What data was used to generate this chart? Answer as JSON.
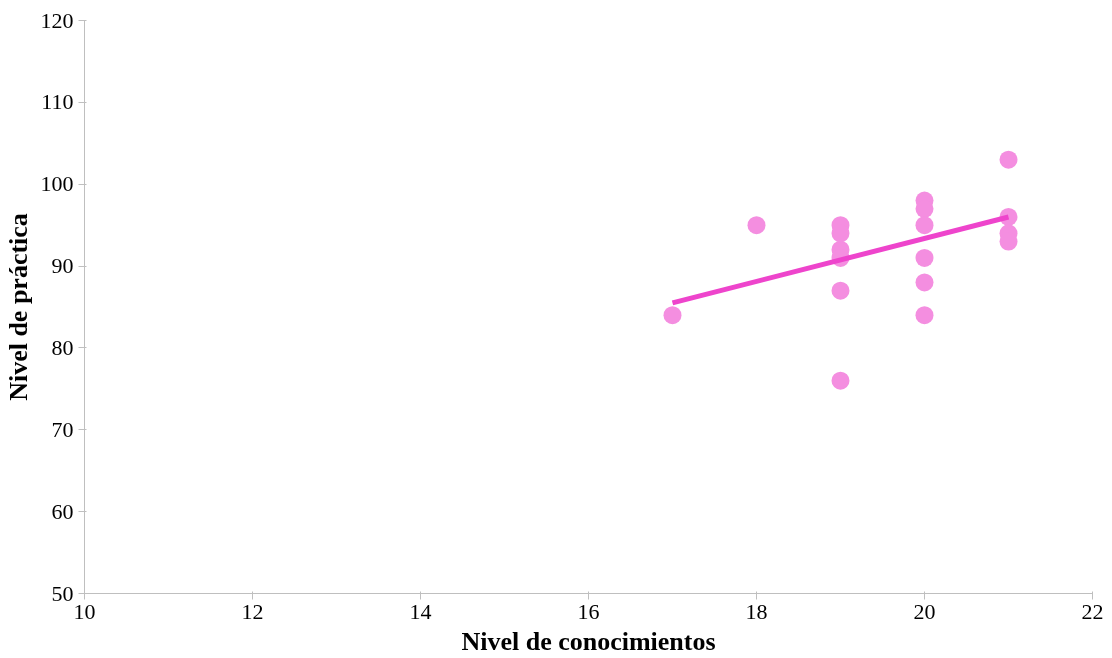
{
  "chart_data": {
    "type": "scatter",
    "xlabel": "Nivel de conocimientos",
    "ylabel": "Nivel de práctica",
    "xlim": [
      10,
      22
    ],
    "xticks": [
      10,
      12,
      14,
      16,
      18,
      20,
      22
    ],
    "ylim": [
      50,
      120
    ],
    "yticks": [
      50,
      60,
      70,
      80,
      90,
      100,
      110,
      120
    ],
    "grid": false,
    "series": [
      {
        "color": "#f48ee0",
        "marker": "circle",
        "x": [
          17,
          18,
          19,
          19,
          19,
          19,
          19,
          19,
          20,
          20,
          20,
          20,
          20,
          20,
          21,
          21,
          21,
          21
        ],
        "values": [
          84,
          95,
          95,
          94,
          92,
          91,
          87,
          76,
          98,
          97,
          95,
          91,
          88,
          84,
          103,
          96,
          94,
          93
        ]
      },
      {
        "type": "line",
        "color": "#ee44cc",
        "line_style": "solid",
        "x": [
          17,
          21
        ],
        "values": [
          85.5,
          96
        ]
      }
    ]
  }
}
